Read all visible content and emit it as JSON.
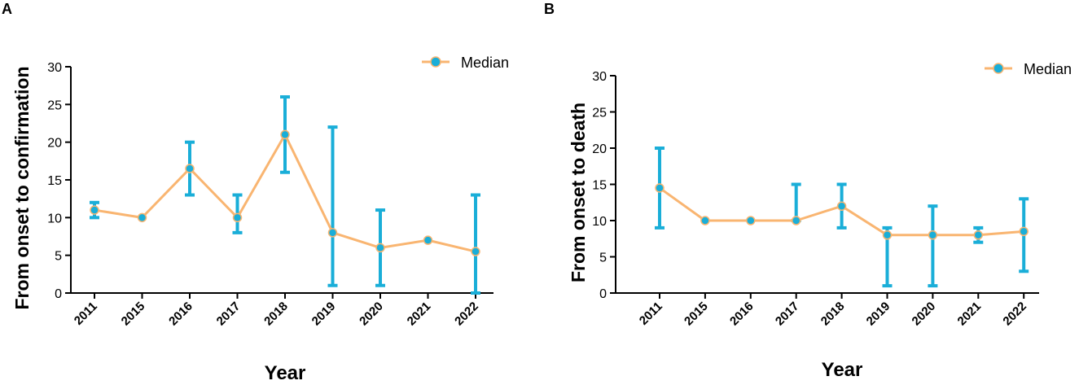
{
  "colors": {
    "line": "#F9B571",
    "marker": "#1AAED8",
    "error_bar": "#1AAED8",
    "axis": "#000000"
  },
  "chart_data": [
    {
      "panel": "A",
      "type": "line",
      "categories": [
        "2011",
        "2015",
        "2016",
        "2017",
        "2018",
        "2019",
        "2020",
        "2021",
        "2022"
      ],
      "series": [
        {
          "name": "Median",
          "values": [
            11,
            10,
            16.5,
            10,
            21,
            8,
            6,
            7,
            5.5
          ],
          "lower": [
            10,
            10,
            13,
            8,
            16,
            1,
            1,
            7,
            0
          ],
          "upper": [
            12,
            10,
            20,
            13,
            26,
            22,
            11,
            7,
            13
          ]
        }
      ],
      "xlabel": "Year",
      "ylabel": "From onset to confirmation",
      "ylim": [
        0,
        30
      ],
      "yticks": [
        "0",
        "5",
        "10",
        "15",
        "20",
        "25",
        "30"
      ],
      "legend": "top-right"
    },
    {
      "panel": "B",
      "type": "line",
      "categories": [
        "2011",
        "2015",
        "2016",
        "2017",
        "2018",
        "2019",
        "2020",
        "2021",
        "2022"
      ],
      "series": [
        {
          "name": "Median",
          "values": [
            14.5,
            10,
            10,
            10,
            12,
            8,
            8,
            8,
            8.5
          ],
          "lower": [
            9,
            10,
            10,
            10,
            9,
            1,
            1,
            7,
            3
          ],
          "upper": [
            20,
            10,
            10,
            15,
            15,
            9,
            12,
            9,
            13
          ]
        }
      ],
      "xlabel": "Year",
      "ylabel": "From onset to death",
      "ylim": [
        0,
        30
      ],
      "yticks": [
        "0",
        "5",
        "10",
        "15",
        "20",
        "25",
        "30"
      ],
      "legend": "top-right"
    }
  ]
}
